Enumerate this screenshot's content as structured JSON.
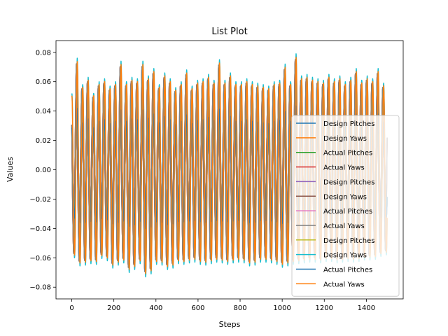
{
  "chart_data": {
    "type": "line",
    "title": "List Plot",
    "xlabel": "Steps",
    "ylabel": "Values",
    "xlim": [
      -75,
      1575
    ],
    "ylim": [
      -0.088,
      0.088
    ],
    "x_ticks": [
      0,
      200,
      400,
      600,
      800,
      1000,
      1200,
      1400
    ],
    "x_tick_labels": [
      "0",
      "200",
      "400",
      "600",
      "800",
      "1000",
      "1200",
      "1400"
    ],
    "y_ticks": [
      -0.08,
      -0.06,
      -0.04,
      -0.02,
      0.0,
      0.02,
      0.04,
      0.06,
      0.08
    ],
    "y_tick_labels": [
      "−0.08",
      "−0.06",
      "−0.04",
      "−0.02",
      "0.00",
      "0.02",
      "0.04",
      "0.06",
      "0.08"
    ],
    "grid": false,
    "legend_position": "lower-right",
    "n_points": 1500,
    "step": 1,
    "waveform": {
      "period_steps": 26,
      "peak_steps": [
        0,
        26,
        52,
        78,
        104,
        130,
        156,
        182,
        208,
        234,
        260,
        286,
        312,
        338,
        364,
        390,
        416,
        442,
        468,
        494,
        520,
        546,
        572,
        598,
        624,
        650,
        676,
        702,
        728,
        754,
        780,
        806,
        832,
        858,
        884,
        910,
        936,
        962,
        988,
        1014,
        1040,
        1066,
        1092,
        1118,
        1144,
        1170,
        1196,
        1222,
        1248,
        1274,
        1300,
        1326,
        1352,
        1378,
        1404,
        1430,
        1456,
        1482
      ],
      "peaks": [
        0.052,
        0.076,
        0.058,
        0.063,
        0.052,
        0.06,
        0.062,
        0.057,
        0.06,
        0.074,
        0.06,
        0.063,
        0.062,
        0.074,
        0.064,
        0.069,
        0.058,
        0.066,
        0.062,
        0.056,
        0.06,
        0.068,
        0.057,
        0.061,
        0.062,
        0.065,
        0.061,
        0.075,
        0.061,
        0.066,
        0.06,
        0.06,
        0.062,
        0.06,
        0.059,
        0.058,
        0.057,
        0.06,
        0.061,
        0.072,
        0.06,
        0.079,
        0.064,
        0.065,
        0.063,
        0.062,
        0.061,
        0.065,
        0.062,
        0.064,
        0.06,
        0.063,
        0.069,
        0.061,
        0.064,
        0.062,
        0.069,
        0.059
      ],
      "troughs": [
        -0.057,
        -0.063,
        -0.068,
        -0.062,
        -0.066,
        -0.063,
        -0.058,
        -0.066,
        -0.068,
        -0.062,
        -0.065,
        -0.075,
        -0.061,
        -0.067,
        -0.079,
        -0.063,
        -0.066,
        -0.064,
        -0.072,
        -0.062,
        -0.066,
        -0.063,
        -0.064,
        -0.062,
        -0.067,
        -0.063,
        -0.065,
        -0.061,
        -0.066,
        -0.063,
        -0.064,
        -0.062,
        -0.065,
        -0.066,
        -0.064,
        -0.062,
        -0.064,
        -0.063,
        -0.066,
        -0.067,
        -0.064,
        -0.065,
        -0.063,
        -0.064,
        -0.062,
        -0.064,
        -0.063,
        -0.062,
        -0.063,
        -0.064,
        -0.062,
        -0.063,
        -0.063,
        -0.062,
        -0.061,
        -0.062,
        -0.06,
        -0.058
      ]
    },
    "series": [
      {
        "name": "Design Pitches",
        "color": "#1f77b4",
        "scale": 0.55,
        "phase": 0
      },
      {
        "name": "Design Yaws",
        "color": "#ff7f0e",
        "scale": 0.95,
        "phase": 4
      },
      {
        "name": "Actual Pitches",
        "color": "#2ca02c",
        "scale": 0.55,
        "phase": 0
      },
      {
        "name": "Actual Yaws",
        "color": "#d62728",
        "scale": 0.95,
        "phase": 4
      },
      {
        "name": "Design Pitches",
        "color": "#9467bd",
        "scale": 0.55,
        "phase": 0
      },
      {
        "name": "Design Yaws",
        "color": "#8c564b",
        "scale": 0.95,
        "phase": 4
      },
      {
        "name": "Actual Pitches",
        "color": "#e377c2",
        "scale": 0.55,
        "phase": 0
      },
      {
        "name": "Actual Yaws",
        "color": "#7f7f7f",
        "scale": 0.95,
        "phase": 4
      },
      {
        "name": "Design Pitches",
        "color": "#bcbd22",
        "scale": 0.55,
        "phase": 0
      },
      {
        "name": "Design Yaws",
        "color": "#17becf",
        "scale": 1.0,
        "phase": 0
      },
      {
        "name": "Actual Pitches",
        "color": "#1f77b4",
        "scale": 0.55,
        "phase": 0
      },
      {
        "name": "Actual Yaws",
        "color": "#ff7f0e",
        "scale": 0.97,
        "phase": 0
      }
    ]
  }
}
